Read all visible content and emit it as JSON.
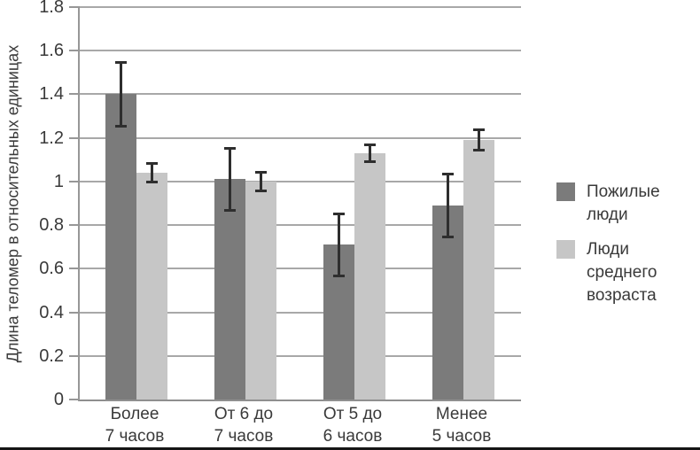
{
  "chart_data": {
    "type": "bar",
    "title": "",
    "ylabel": "Длина теломер в относительных единицах",
    "xlabel": "",
    "ylim": [
      0,
      1.8
    ],
    "ytick_step": 0.2,
    "yticks": [
      "0",
      "0.2",
      "0.4",
      "0.6",
      "0.8",
      "1",
      "1.2",
      "1.4",
      "1.6",
      "1.8"
    ],
    "grid": "horizontal",
    "legend_position": "right",
    "categories": [
      [
        "Более",
        "7 часов"
      ],
      [
        "От 6 до",
        "7 часов"
      ],
      [
        "От 5 до",
        "6 часов"
      ],
      [
        "Менее",
        "5 часов"
      ]
    ],
    "series": [
      {
        "name": "Пожилые люди",
        "color": "#7b7b7b",
        "values": [
          1.4,
          1.01,
          0.71,
          0.89
        ],
        "errors": [
          0.15,
          0.145,
          0.145,
          0.145
        ]
      },
      {
        "name": "Люди среднего возраста",
        "color": "#c6c6c6",
        "values": [
          1.04,
          1.0,
          1.13,
          1.19
        ],
        "errors": [
          0.045,
          0.045,
          0.04,
          0.05
        ]
      }
    ]
  },
  "colors": {
    "gridline": "#a8a8a8",
    "axis": "#979797",
    "error_bar": "#2e2e2e",
    "text": "#3a3a3a"
  }
}
